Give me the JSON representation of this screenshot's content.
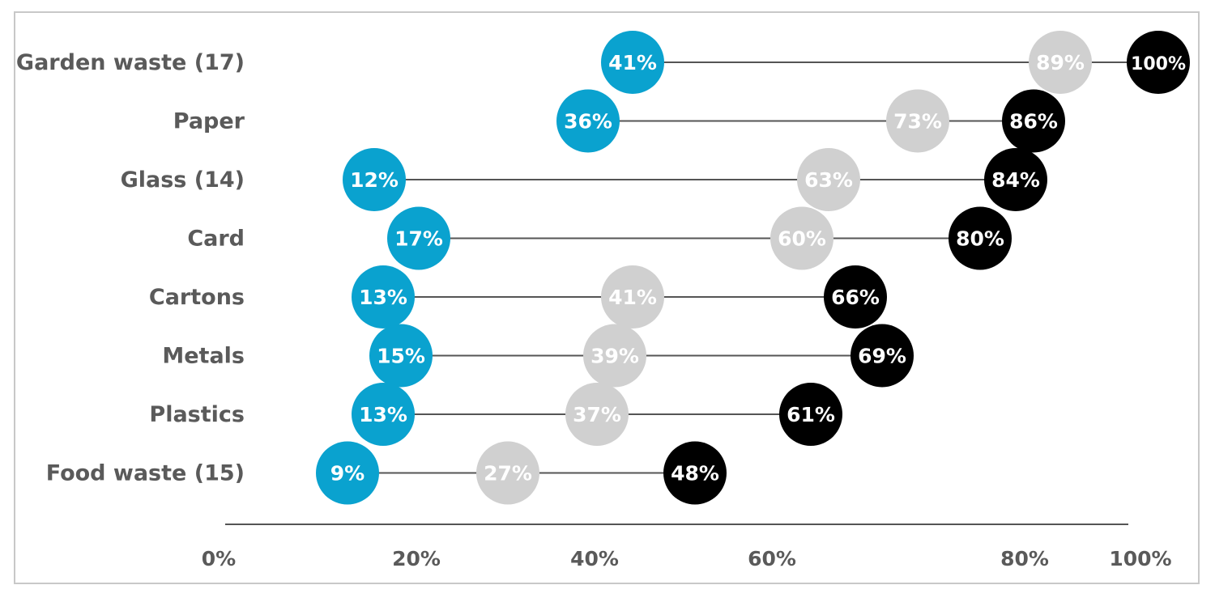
{
  "chart_data": {
    "type": "dot",
    "categories": [
      "Garden waste (17)",
      "Paper",
      "Glass (14)",
      "Card",
      "Cartons",
      "Metals",
      "Plastics",
      "Food waste (15)"
    ],
    "series": [
      {
        "values": [
          41,
          36,
          12,
          17,
          13,
          15,
          13,
          9
        ],
        "labels": [
          "41%",
          "36%",
          "12%",
          "17%",
          "13%",
          "15%",
          "13%",
          "9%"
        ],
        "color": "#0aa2cf"
      },
      {
        "values": [
          89,
          73,
          63,
          60,
          41,
          39,
          37,
          27
        ],
        "labels": [
          "89%",
          "73%",
          "63%",
          "60%",
          "41%",
          "39%",
          "37%",
          "27%"
        ],
        "color": "#d0d0d0"
      },
      {
        "values": [
          100,
          86,
          84,
          80,
          66,
          69,
          61,
          48
        ],
        "labels": [
          "100%",
          "86%",
          "84%",
          "80%",
          "66%",
          "69%",
          "61%",
          "48%"
        ],
        "color": "#000000"
      }
    ],
    "x_ticks": [
      "0%",
      "20%",
      "40%",
      "60%",
      "80%",
      "100%"
    ],
    "xlim": [
      0,
      100
    ],
    "title": "",
    "xlabel": "",
    "ylabel": "",
    "legend": "none",
    "grid": false,
    "connector_color": "#555555",
    "axis_color": "#555555"
  }
}
